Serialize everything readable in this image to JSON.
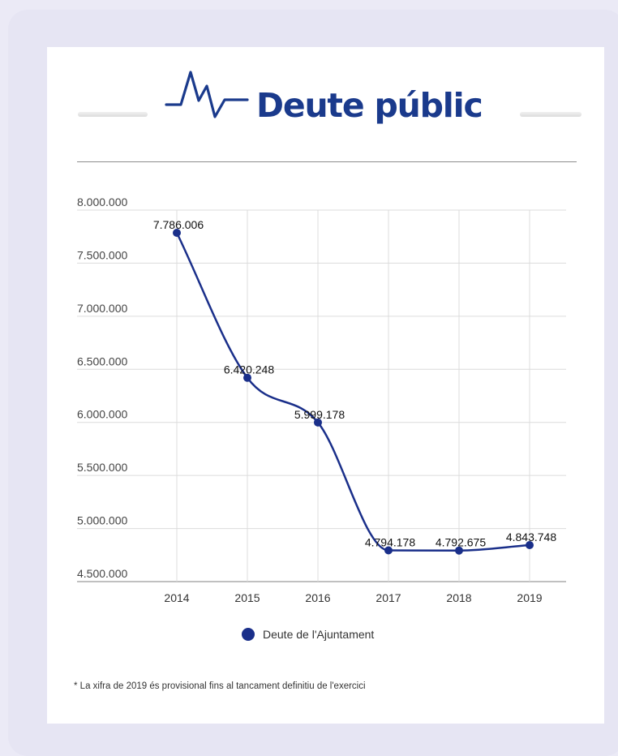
{
  "header": {
    "title": "Deute públic",
    "icon": "heartbeat-icon",
    "accent_color": "#1a3a8c"
  },
  "chart_data": {
    "type": "line",
    "title": "Deute públic",
    "xlabel": "",
    "ylabel": "",
    "categories": [
      "2014",
      "2015",
      "2016",
      "2017",
      "2018",
      "2019"
    ],
    "series": [
      {
        "name": "Deute de l'Ajuntament",
        "values": [
          7786006,
          6420248,
          5999178,
          4794178,
          4792675,
          4843748
        ],
        "labels": [
          "7.786.006",
          "6.420.248",
          "5.999.178",
          "4.794.178",
          "4.792.675",
          "4.843.748"
        ],
        "color": "#1a2f8a"
      }
    ],
    "yticks": [
      {
        "value": 4500000,
        "label": "4.500.000"
      },
      {
        "value": 5000000,
        "label": "5.000.000"
      },
      {
        "value": 5500000,
        "label": "5.500.000"
      },
      {
        "value": 6000000,
        "label": "6.000.000"
      },
      {
        "value": 6500000,
        "label": "6.500.000"
      },
      {
        "value": 7000000,
        "label": "7.000.000"
      },
      {
        "value": 7500000,
        "label": "7.500.000"
      },
      {
        "value": 8000000,
        "label": "8.000.000"
      }
    ],
    "ylim": [
      4500000,
      8000000
    ],
    "grid": true,
    "legend": "bottom",
    "smooth": true
  },
  "legend": {
    "label": "Deute de l'Ajuntament"
  },
  "footnote": "* La xifra de 2019 és provisional fins al tancament definitiu de l'exercici"
}
